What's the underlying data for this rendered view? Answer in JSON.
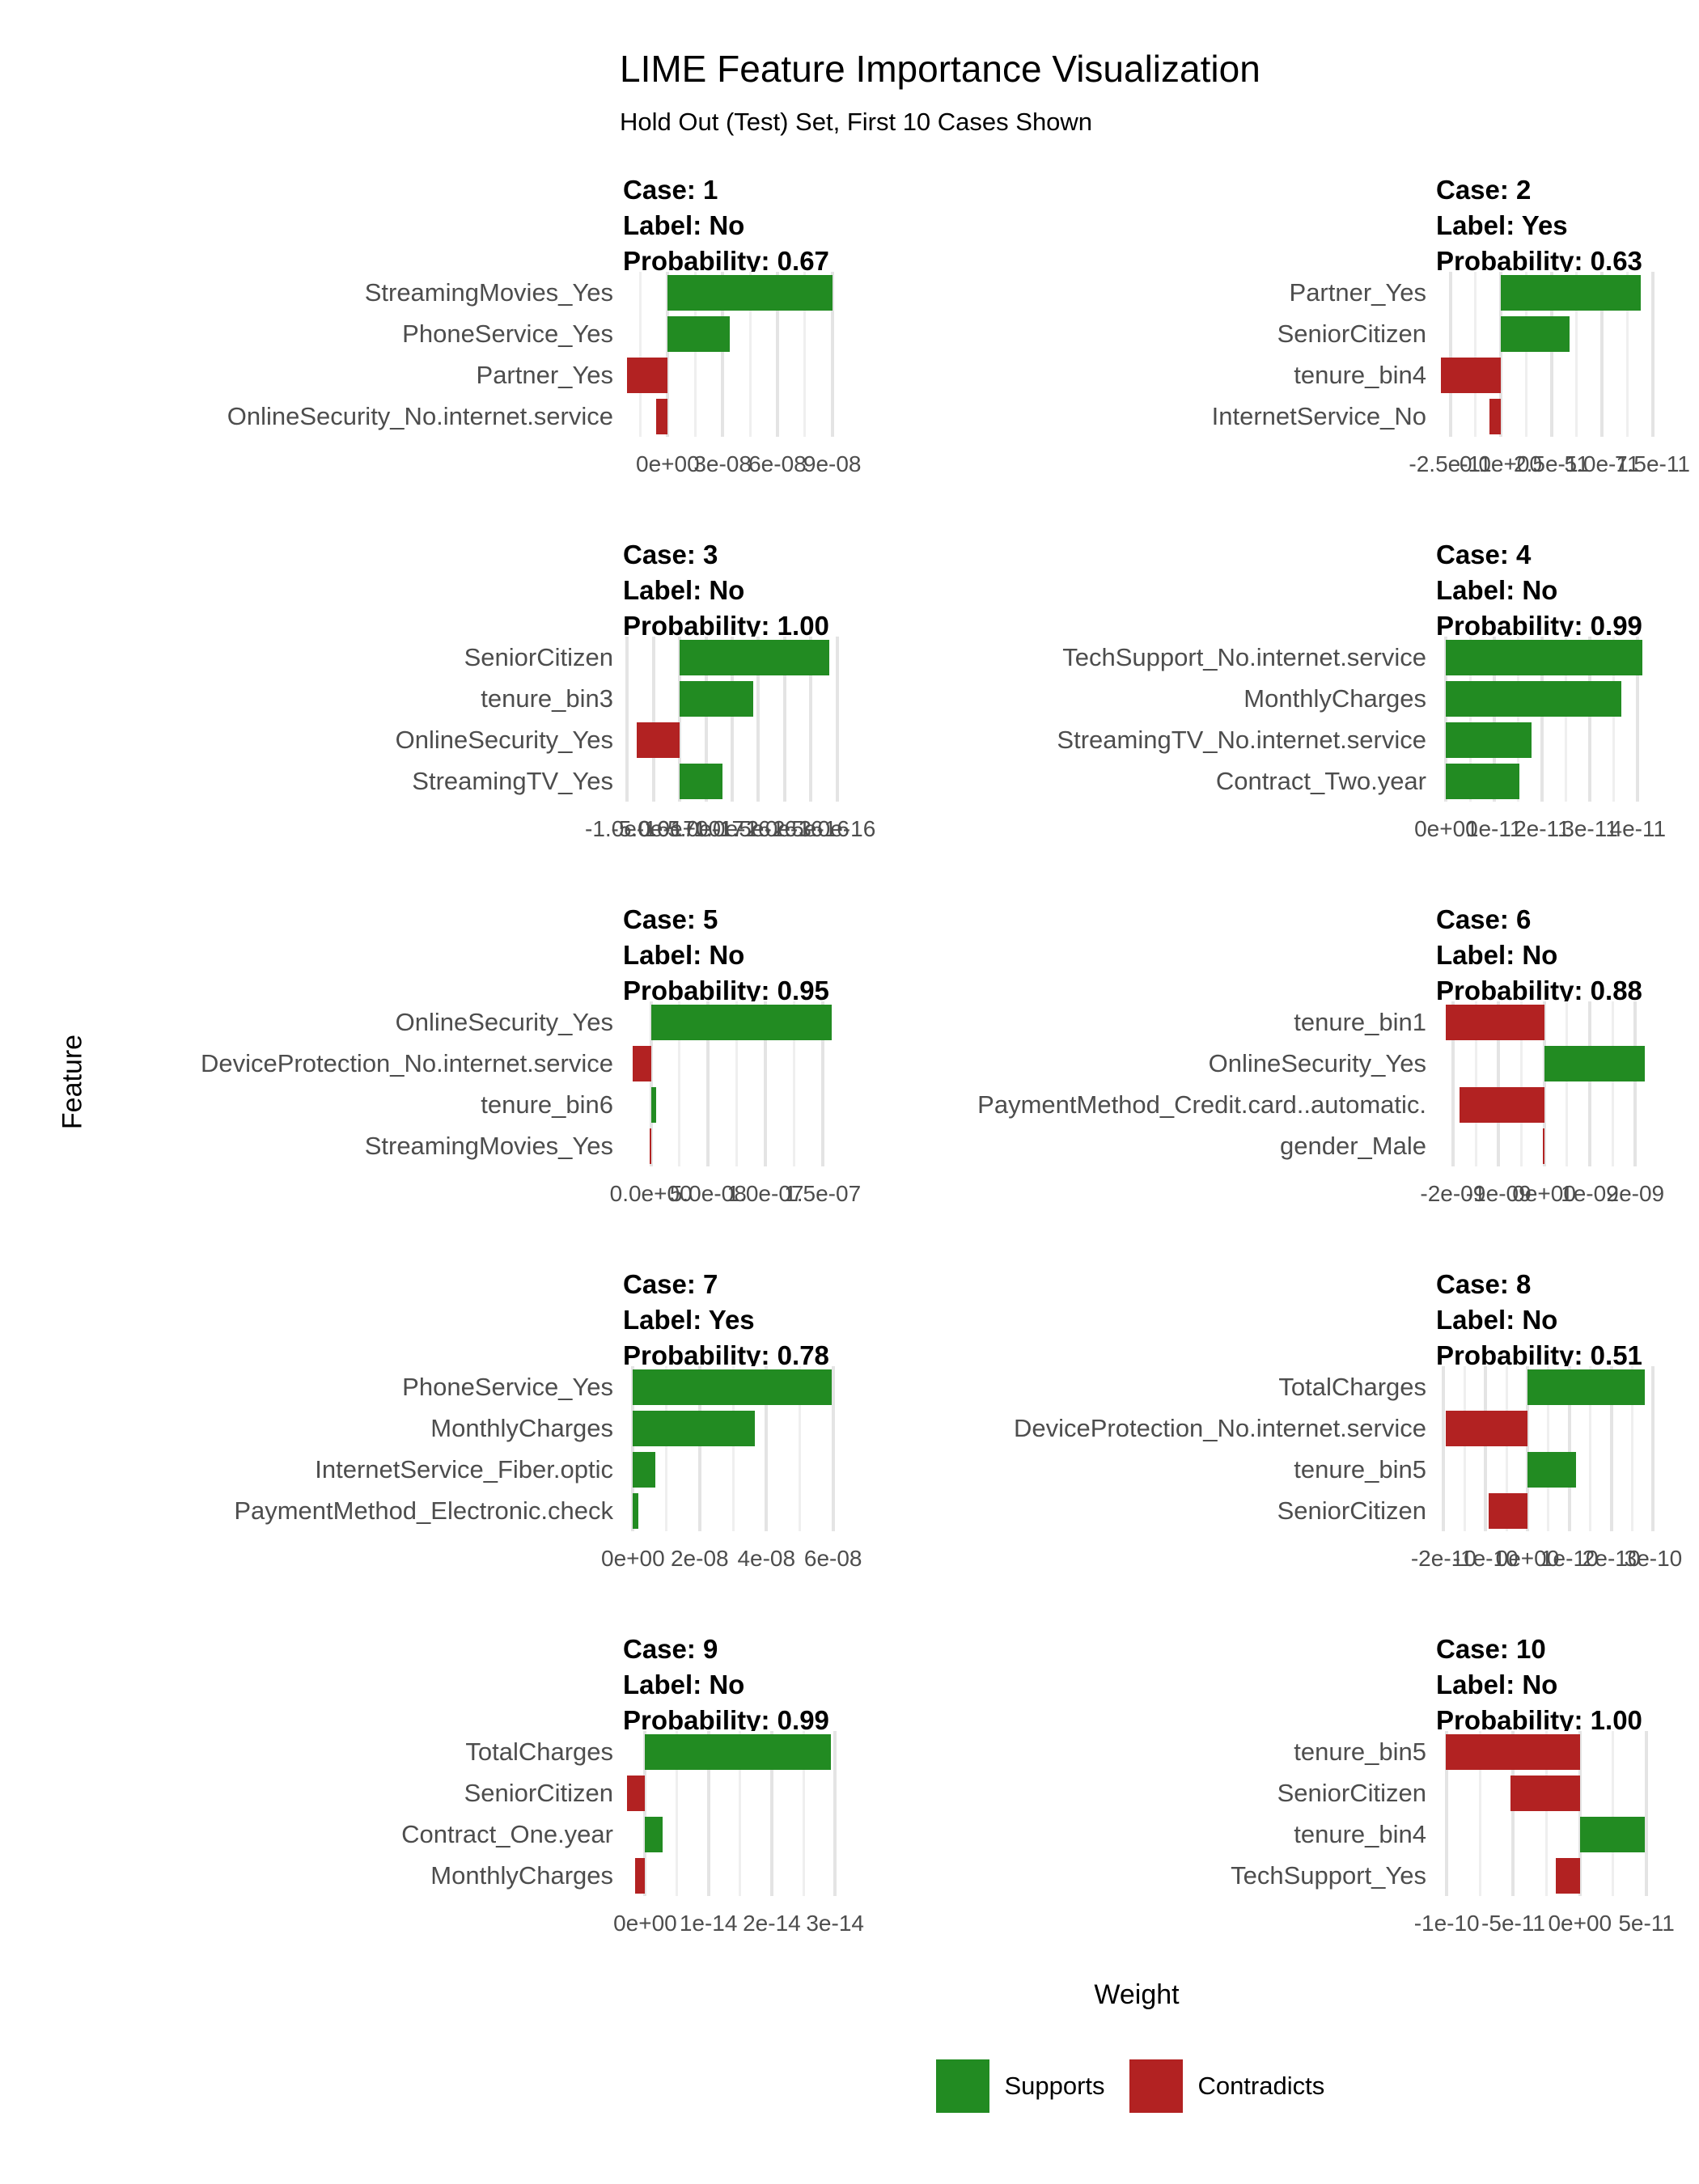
{
  "title": "LIME Feature Importance Visualization",
  "subtitle": "Hold Out (Test) Set, First 10 Cases Shown",
  "x_axis_title": "Weight",
  "y_axis_title": "Feature",
  "legend": {
    "supports": "Supports",
    "contradicts": "Contradicts"
  },
  "colors": {
    "supports": "#228B22",
    "contradicts": "#B22222",
    "gridline_major": "#e4e4e4",
    "gridline_minor": "#efefef",
    "axis_text": "#4d4d4d",
    "background": "#ffffff"
  },
  "chart_data": {
    "type": "bar",
    "orientation": "horizontal",
    "layout": "facet grid 5 rows x 2 cols",
    "grid": "on",
    "legend_position": "bottom",
    "panels": [
      {
        "case": "Case: 1",
        "label": "Label: No",
        "probability": "Probability: 0.67",
        "x_range": [
          -2.45e-08,
          9.5e-08
        ],
        "ticks": [
          {
            "v": 0,
            "t": "0e+00"
          },
          {
            "v": 3e-08,
            "t": "3e-08"
          },
          {
            "v": 6e-08,
            "t": "6e-08"
          },
          {
            "v": 9e-08,
            "t": "9e-08"
          }
        ],
        "bars": [
          {
            "feature": "StreamingMovies_Yes",
            "weight": 9e-08,
            "type": "supports"
          },
          {
            "feature": "PhoneService_Yes",
            "weight": 3.4e-08,
            "type": "supports"
          },
          {
            "feature": "Partner_Yes",
            "weight": -2.25e-08,
            "type": "contradicts"
          },
          {
            "feature": "OnlineSecurity_No.internet.service",
            "weight": -6.3e-09,
            "type": "contradicts"
          }
        ]
      },
      {
        "case": "Case: 2",
        "label": "Label: Yes",
        "probability": "Probability: 0.63",
        "x_range": [
          -3.2e-11,
          7.6e-11
        ],
        "ticks": [
          {
            "v": -2.5e-11,
            "t": "-2.5e-11"
          },
          {
            "v": 0,
            "t": "0.0e+00"
          },
          {
            "v": 2.5e-11,
            "t": "2.5e-11"
          },
          {
            "v": 5e-11,
            "t": "5.0e-11"
          },
          {
            "v": 7.5e-11,
            "t": "7.5e-11"
          }
        ],
        "bars": [
          {
            "feature": "Partner_Yes",
            "weight": 6.9e-11,
            "type": "supports"
          },
          {
            "feature": "SeniorCitizen",
            "weight": 3.4e-11,
            "type": "supports"
          },
          {
            "feature": "tenure_bin4",
            "weight": -2.95e-11,
            "type": "contradicts"
          },
          {
            "feature": "InternetService_No",
            "weight": -5.5e-12,
            "type": "contradicts"
          }
        ]
      },
      {
        "case": "Case: 3",
        "label": "Label: No",
        "probability": "Probability: 1.00",
        "x_range": [
          -1.08e-16,
          3.08e-16
        ],
        "minor_gridlines": false,
        "ticks": [
          {
            "v": -1e-16,
            "t": "-1.0e-16"
          },
          {
            "v": -5e-17,
            "t": "-5.0e-17"
          },
          {
            "v": 0,
            "t": "0.0e+00"
          },
          {
            "v": 5e-17,
            "t": "5.0e-17"
          },
          {
            "v": 1e-16,
            "t": "1.0e-16"
          },
          {
            "v": 1.5e-16,
            "t": "1.5e-16"
          },
          {
            "v": 2e-16,
            "t": "2.0e-16"
          },
          {
            "v": 2.5e-16,
            "t": "2.5e-16"
          },
          {
            "v": 3e-16,
            "t": "3.0e-16"
          }
        ],
        "bars": [
          {
            "feature": "SeniorCitizen",
            "weight": 2.85e-16,
            "type": "supports"
          },
          {
            "feature": "tenure_bin3",
            "weight": 1.4e-16,
            "type": "supports"
          },
          {
            "feature": "OnlineSecurity_Yes",
            "weight": -8.2e-17,
            "type": "contradicts"
          },
          {
            "feature": "StreamingTV_Yes",
            "weight": 8.2e-17,
            "type": "supports"
          }
        ]
      },
      {
        "case": "Case: 4",
        "label": "Label: No",
        "probability": "Probability: 0.99",
        "x_range": [
          -2.1e-12,
          4.35e-11
        ],
        "ticks": [
          {
            "v": 0,
            "t": "0e+00"
          },
          {
            "v": 1e-11,
            "t": "1e-11"
          },
          {
            "v": 2e-11,
            "t": "2e-11"
          },
          {
            "v": 3e-11,
            "t": "3e-11"
          },
          {
            "v": 4e-11,
            "t": "4e-11"
          }
        ],
        "bars": [
          {
            "feature": "TechSupport_No.internet.service",
            "weight": 4.1e-11,
            "type": "supports"
          },
          {
            "feature": "MonthlyCharges",
            "weight": 3.65e-11,
            "type": "supports"
          },
          {
            "feature": "StreamingTV_No.internet.service",
            "weight": 1.78e-11,
            "type": "supports"
          },
          {
            "feature": "Contract_Two.year",
            "weight": 1.53e-11,
            "type": "supports"
          }
        ]
      },
      {
        "case": "Case: 5",
        "label": "Label: No",
        "probability": "Probability: 0.95",
        "x_range": [
          -2.45e-08,
          1.665e-07
        ],
        "ticks": [
          {
            "v": 0,
            "t": "0.0e+00"
          },
          {
            "v": 5e-08,
            "t": "5.0e-08"
          },
          {
            "v": 1e-07,
            "t": "1.0e-07"
          },
          {
            "v": 1.5e-07,
            "t": "1.5e-07"
          }
        ],
        "bars": [
          {
            "feature": "OnlineSecurity_Yes",
            "weight": 1.58e-07,
            "type": "supports"
          },
          {
            "feature": "DeviceProtection_No.internet.service",
            "weight": -1.6e-08,
            "type": "contradicts"
          },
          {
            "feature": "tenure_bin6",
            "weight": 4.5e-09,
            "type": "supports"
          },
          {
            "feature": "StreamingMovies_Yes",
            "weight": -1.2e-09,
            "type": "contradicts"
          }
        ]
      },
      {
        "case": "Case: 6",
        "label": "Label: No",
        "probability": "Probability: 0.88",
        "x_range": [
          -2.37e-09,
          2.42e-09
        ],
        "ticks": [
          {
            "v": -2e-09,
            "t": "-2e-09"
          },
          {
            "v": -1e-09,
            "t": "-1e-09"
          },
          {
            "v": 0,
            "t": "0e+00"
          },
          {
            "v": 1e-09,
            "t": "1e-09"
          },
          {
            "v": 2e-09,
            "t": "2e-09"
          }
        ],
        "bars": [
          {
            "feature": "tenure_bin1",
            "weight": -2.15e-09,
            "type": "contradicts"
          },
          {
            "feature": "OnlineSecurity_Yes",
            "weight": 2.2e-09,
            "type": "supports"
          },
          {
            "feature": "PaymentMethod_Credit.card..automatic.",
            "weight": -1.85e-09,
            "type": "contradicts"
          },
          {
            "feature": "gender_Male",
            "weight": -3e-11,
            "type": "contradicts"
          }
        ]
      },
      {
        "case": "Case: 7",
        "label": "Label: Yes",
        "probability": "Probability: 0.78",
        "x_range": [
          -3e-09,
          6.25e-08
        ],
        "ticks": [
          {
            "v": 0,
            "t": "0e+00"
          },
          {
            "v": 2e-08,
            "t": "2e-08"
          },
          {
            "v": 4e-08,
            "t": "4e-08"
          },
          {
            "v": 6e-08,
            "t": "6e-08"
          }
        ],
        "bars": [
          {
            "feature": "PhoneService_Yes",
            "weight": 5.95e-08,
            "type": "supports"
          },
          {
            "feature": "MonthlyCharges",
            "weight": 3.65e-08,
            "type": "supports"
          },
          {
            "feature": "InternetService_Fiber.optic",
            "weight": 6.8e-09,
            "type": "supports"
          },
          {
            "feature": "PaymentMethod_Electronic.check",
            "weight": 1.5e-09,
            "type": "supports"
          }
        ]
      },
      {
        "case": "Case: 8",
        "label": "Label: No",
        "probability": "Probability: 0.51",
        "x_range": [
          -2.18e-10,
          3.03e-10
        ],
        "ticks": [
          {
            "v": -2e-10,
            "t": "-2e-10"
          },
          {
            "v": -1e-10,
            "t": "-1e-10"
          },
          {
            "v": 0,
            "t": "0e+00"
          },
          {
            "v": 1e-10,
            "t": "1e-10"
          },
          {
            "v": 2e-10,
            "t": "2e-10"
          },
          {
            "v": 3e-10,
            "t": "3e-10"
          }
        ],
        "bars": [
          {
            "feature": "TotalCharges",
            "weight": 2.8e-10,
            "type": "supports"
          },
          {
            "feature": "DeviceProtection_No.internet.service",
            "weight": -1.95e-10,
            "type": "contradicts"
          },
          {
            "feature": "tenure_bin5",
            "weight": 1.15e-10,
            "type": "supports"
          },
          {
            "feature": "SeniorCitizen",
            "weight": -9.3e-11,
            "type": "contradicts"
          }
        ]
      },
      {
        "case": "Case: 9",
        "label": "Label: No",
        "probability": "Probability: 0.99",
        "x_range": [
          -3.5e-15,
          3.1e-14
        ],
        "ticks": [
          {
            "v": 0,
            "t": "0e+00"
          },
          {
            "v": 1e-14,
            "t": "1e-14"
          },
          {
            "v": 2e-14,
            "t": "2e-14"
          },
          {
            "v": 3e-14,
            "t": "3e-14"
          }
        ],
        "bars": [
          {
            "feature": "TotalCharges",
            "weight": 2.93e-14,
            "type": "supports"
          },
          {
            "feature": "SeniorCitizen",
            "weight": -2.8e-15,
            "type": "contradicts"
          },
          {
            "feature": "Contract_One.year",
            "weight": 2.8e-15,
            "type": "supports"
          },
          {
            "feature": "MonthlyCharges",
            "weight": -1.6e-15,
            "type": "contradicts"
          }
        ]
      },
      {
        "case": "Case: 10",
        "label": "Label: No",
        "probability": "Probability: 1.00",
        "x_range": [
          -1.08e-10,
          5.6e-11
        ],
        "ticks": [
          {
            "v": -1e-10,
            "t": "-1e-10"
          },
          {
            "v": -5e-11,
            "t": "-5e-11"
          },
          {
            "v": 0,
            "t": "0e+00"
          },
          {
            "v": 5e-11,
            "t": "5e-11"
          }
        ],
        "bars": [
          {
            "feature": "tenure_bin5",
            "weight": -1.01e-10,
            "type": "contradicts"
          },
          {
            "feature": "SeniorCitizen",
            "weight": -5.2e-11,
            "type": "contradicts"
          },
          {
            "feature": "tenure_bin4",
            "weight": 4.9e-11,
            "type": "supports"
          },
          {
            "feature": "TechSupport_Yes",
            "weight": -1.8e-11,
            "type": "contradicts"
          }
        ]
      }
    ]
  }
}
